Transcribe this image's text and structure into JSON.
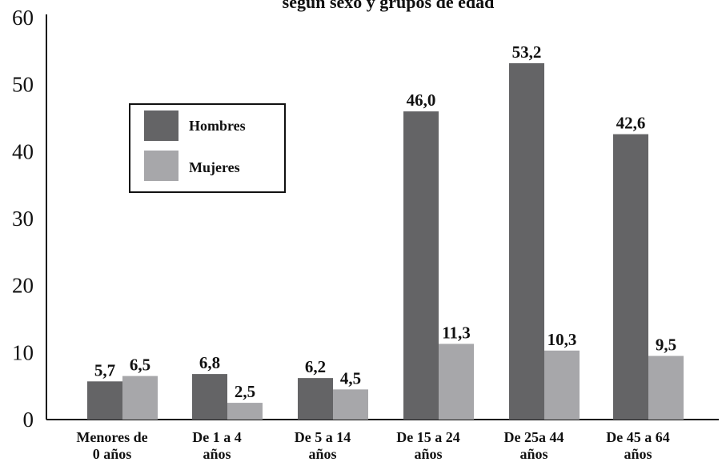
{
  "chart_data": {
    "type": "bar",
    "title": "según sexo y grupos de edad",
    "categories": [
      [
        "Menores de",
        "0 años"
      ],
      [
        "De 1 a 4",
        "años"
      ],
      [
        "De 5 a 14",
        "años"
      ],
      [
        "De 15 a 24",
        "años"
      ],
      [
        "De 25a 44",
        "años"
      ],
      [
        "De 45 a 64",
        "años"
      ]
    ],
    "series": [
      {
        "name": "Hombres",
        "color": "#646466",
        "values": [
          5.7,
          6.8,
          6.2,
          46.0,
          53.2,
          42.6
        ],
        "labels": [
          "5,7",
          "6,8",
          "6,2",
          "46,0",
          "53,2",
          "42,6"
        ]
      },
      {
        "name": "Mujeres",
        "color": "#a7a7aa",
        "values": [
          6.5,
          2.5,
          4.5,
          11.3,
          10.3,
          9.5
        ],
        "labels": [
          "6,5",
          "2,5",
          "4,5",
          "11,3",
          "10,3",
          "9,5"
        ]
      }
    ],
    "yticks": [
      "0",
      "10",
      "20",
      "30",
      "40",
      "50",
      "60"
    ],
    "ylim": [
      0,
      60
    ],
    "legend_position": "top-left",
    "grid": false
  }
}
